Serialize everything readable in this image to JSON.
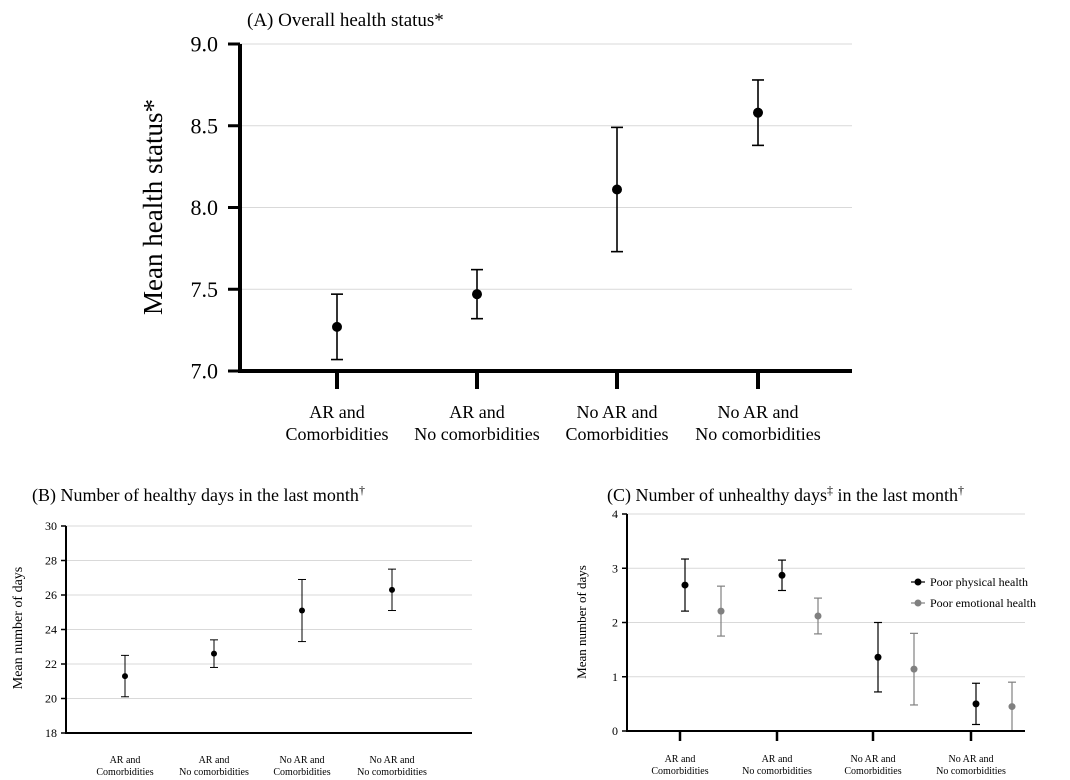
{
  "chart_data": [
    {
      "panel": "A",
      "type": "scatter",
      "title": "(A) Overall health status*",
      "ylabel": "Mean health status*",
      "ylim": [
        7.0,
        9.0
      ],
      "yticks": [
        "7.0",
        "7.5",
        "8.0",
        "8.5",
        "9.0"
      ],
      "grid": true,
      "categories": [
        [
          "AR and",
          "Comorbidities"
        ],
        [
          "AR and",
          "No comorbidities"
        ],
        [
          "No AR and",
          "Comorbidities"
        ],
        [
          "No AR and",
          "No comorbidities"
        ]
      ],
      "series": [
        {
          "color": "#000000",
          "values": [
            7.27,
            7.47,
            8.11,
            8.58
          ],
          "lower": [
            7.07,
            7.32,
            7.73,
            8.38
          ],
          "upper": [
            7.47,
            7.62,
            8.49,
            8.78
          ]
        }
      ]
    },
    {
      "panel": "B",
      "type": "scatter",
      "title": "(B) Number of healthy days in the last month",
      "title_sup": "†",
      "ylabel": "Mean  number of days",
      "ylim": [
        18,
        30
      ],
      "yticks": [
        "18",
        "20",
        "22",
        "24",
        "26",
        "28",
        "30"
      ],
      "grid": true,
      "categories": [
        [
          "AR and",
          "Comorbidities"
        ],
        [
          "AR and",
          "No comorbidities"
        ],
        [
          "No AR and",
          "Comorbidities"
        ],
        [
          "No AR and",
          "No comorbidities"
        ]
      ],
      "series": [
        {
          "color": "#000000",
          "values": [
            21.3,
            22.6,
            25.1,
            26.3
          ],
          "lower": [
            20.1,
            21.8,
            23.3,
            25.1
          ],
          "upper": [
            22.5,
            23.4,
            26.9,
            27.5
          ]
        }
      ]
    },
    {
      "panel": "C",
      "type": "scatter",
      "title_parts": [
        "(C) Number of unhealthy days",
        "‡",
        " in the last month",
        "†"
      ],
      "ylabel": "Mean number of  days",
      "ylim": [
        0,
        4
      ],
      "yticks": [
        "0",
        "1",
        "2",
        "3",
        "4"
      ],
      "grid": true,
      "legend_position": "right",
      "categories": [
        [
          "AR and",
          "Comorbidities"
        ],
        [
          "AR and",
          "No comorbidities"
        ],
        [
          "No AR and",
          "Comorbidities"
        ],
        [
          "No AR and",
          "No comorbidities"
        ]
      ],
      "series": [
        {
          "name": "Poor physical health",
          "color": "#000000",
          "values": [
            2.69,
            2.87,
            1.36,
            0.5
          ],
          "lower": [
            2.21,
            2.59,
            0.72,
            0.12
          ],
          "upper": [
            3.17,
            3.15,
            2.0,
            0.88
          ]
        },
        {
          "name": " Poor emotional health",
          "color": "#808080",
          "values": [
            2.21,
            2.12,
            1.14,
            0.45
          ],
          "lower": [
            1.75,
            1.79,
            0.48,
            0.0
          ],
          "upper": [
            2.67,
            2.45,
            1.8,
            0.9
          ]
        }
      ]
    }
  ]
}
